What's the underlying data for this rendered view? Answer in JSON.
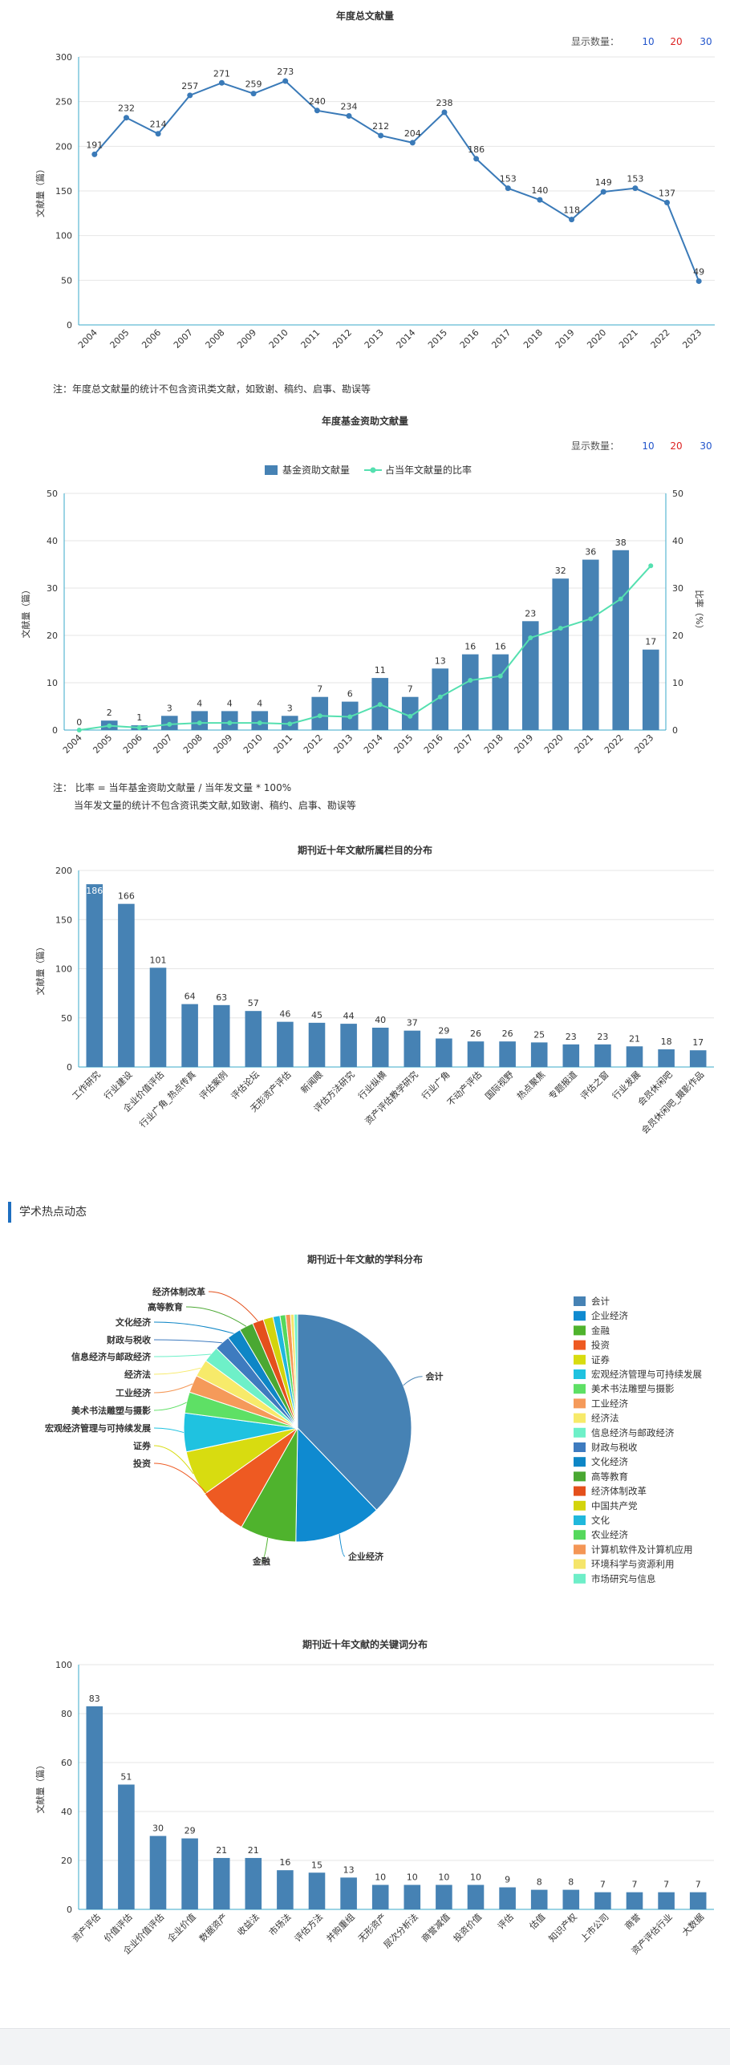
{
  "show_count": {
    "label": "显示数量：",
    "options": [
      "10",
      "20",
      "30"
    ]
  },
  "section": {
    "title": "学术热点动态"
  },
  "chart_data": [
    {
      "id": "annual",
      "type": "line",
      "title": "年度总文献量",
      "ylabel": "文献量（篇）",
      "ylim": [
        0,
        300
      ],
      "yticks": [
        0,
        50,
        100,
        150,
        200,
        250,
        300
      ],
      "x": [
        "2004",
        "2005",
        "2006",
        "2007",
        "2008",
        "2009",
        "2010",
        "2011",
        "2012",
        "2013",
        "2014",
        "2015",
        "2016",
        "2017",
        "2018",
        "2019",
        "2020",
        "2021",
        "2022",
        "2023"
      ],
      "values": [
        191,
        232,
        214,
        257,
        271,
        259,
        273,
        240,
        234,
        212,
        204,
        238,
        186,
        153,
        140,
        118,
        149,
        153,
        137,
        49
      ],
      "color": "#3a7ab8",
      "note": "注：年度总文献量的统计不包含资讯类文献，如致谢、稿约、启事、勘误等"
    },
    {
      "id": "fund",
      "type": "bar",
      "title": "年度基金资助文献量",
      "ylabel": "文献量（篇）",
      "y2label": "比率（%）",
      "ylim": [
        0,
        50
      ],
      "yticks": [
        0,
        10,
        20,
        30,
        40,
        50
      ],
      "x": [
        "2004",
        "2005",
        "2006",
        "2007",
        "2008",
        "2009",
        "2010",
        "2011",
        "2012",
        "2013",
        "2014",
        "2015",
        "2016",
        "2017",
        "2018",
        "2019",
        "2020",
        "2021",
        "2022",
        "2023"
      ],
      "series": [
        {
          "name": "基金资助文献量",
          "values": [
            0,
            2,
            1,
            3,
            4,
            4,
            4,
            3,
            7,
            6,
            11,
            7,
            13,
            16,
            16,
            23,
            32,
            36,
            38,
            17
          ],
          "color": "#4682b4"
        },
        {
          "name": "占当年文献量的比率",
          "values": [
            0,
            0.9,
            0.5,
            1.2,
            1.5,
            1.5,
            1.5,
            1.3,
            3.0,
            2.8,
            5.4,
            2.9,
            7.0,
            10.5,
            11.4,
            19.5,
            21.5,
            23.5,
            27.7,
            34.7
          ],
          "color": "#55e0b0"
        }
      ],
      "note_lines": [
        "注：  比率 = 当年基金资助文献量 / 当年发文量 * 100%",
        "当年发文量的统计不包含资讯类文献,如致谢、稿约、启事、勘误等"
      ]
    },
    {
      "id": "columns",
      "type": "bar",
      "title": "期刊近十年文献所属栏目的分布",
      "ylabel": "文献量（篇）",
      "ylim": [
        0,
        200
      ],
      "yticks": [
        0,
        50,
        100,
        150,
        200
      ],
      "categories": [
        "工作研究",
        "行业建设",
        "企业价值评估",
        "行业广角_热点传真",
        "评估案例",
        "评估论坛",
        "无形资产评估",
        "新闻眼",
        "评估方法研究",
        "行业纵横",
        "资产评估教学研究",
        "行业广角",
        "不动产评估",
        "国际视野",
        "热点聚焦",
        "专题报道",
        "评估之窗",
        "行业发展",
        "会员休闲吧",
        "会员休闲吧_摄影作品"
      ],
      "values": [
        186,
        166,
        101,
        64,
        63,
        57,
        46,
        45,
        44,
        40,
        37,
        29,
        26,
        26,
        25,
        23,
        23,
        21,
        18,
        17
      ],
      "labels": [
        "186",
        "166",
        "101",
        "64",
        "63",
        "57",
        "46",
        "45",
        "44",
        "40",
        "37",
        "29",
        "26",
        "26",
        "25",
        "23",
        "23",
        "21",
        "18",
        "17"
      ],
      "color": "#4682b4"
    },
    {
      "id": "subjects",
      "type": "pie",
      "title": "期刊近十年文献的学科分布",
      "slices": [
        {
          "name": "会计",
          "value": 38.0,
          "color": "#4682b4"
        },
        {
          "name": "企业经济",
          "value": 12.5,
          "color": "#0f8ad0"
        },
        {
          "name": "金融",
          "value": 8.0,
          "color": "#4fb32d"
        },
        {
          "name": "投资",
          "value": 7.0,
          "color": "#ee5a22"
        },
        {
          "name": "证券",
          "value": 6.5,
          "color": "#d8dc10"
        },
        {
          "name": "宏观经济管理与可持续发展",
          "value": 5.5,
          "color": "#1fc2e0"
        },
        {
          "name": "美术书法雕塑与摄影",
          "value": 3.0,
          "color": "#5ee065"
        },
        {
          "name": "工业经济",
          "value": 2.5,
          "color": "#f59a5a"
        },
        {
          "name": "经济法",
          "value": 2.5,
          "color": "#f7ea6a"
        },
        {
          "name": "信息经济与邮政经济",
          "value": 2.3,
          "color": "#6ef0c8"
        },
        {
          "name": "财政与税收",
          "value": 2.2,
          "color": "#3e7bbf"
        },
        {
          "name": "文化经济",
          "value": 2.0,
          "color": "#0e86c6"
        },
        {
          "name": "高等教育",
          "value": 2.0,
          "color": "#4aa832"
        },
        {
          "name": "经济体制改革",
          "value": 1.6,
          "color": "#e4501c"
        },
        {
          "name": "中国共产党",
          "value": 1.4,
          "color": "#d3d40c"
        },
        {
          "name": "文化",
          "value": 1.0,
          "color": "#20b8dc"
        },
        {
          "name": "农业经济",
          "value": 0.8,
          "color": "#55d85c"
        },
        {
          "name": "计算机软件及计算机应用",
          "value": 0.7,
          "color": "#f49656"
        },
        {
          "name": "环境科学与资源利用",
          "value": 0.5,
          "color": "#f5e56a"
        },
        {
          "name": "市场研究与信息",
          "value": 0.5,
          "color": "#6eeec8"
        }
      ]
    },
    {
      "id": "keywords",
      "type": "bar",
      "title": "期刊近十年文献的关键词分布",
      "ylabel": "文献量（篇）",
      "ylim": [
        0,
        100
      ],
      "yticks": [
        0,
        20,
        40,
        60,
        80,
        100
      ],
      "categories": [
        "资产评估",
        "价值评估",
        "企业价值评估",
        "企业价值",
        "数据资产",
        "收益法",
        "市场法",
        "评估方法",
        "并购重组",
        "无形资产",
        "层次分析法",
        "商誉减值",
        "投资价值",
        "评估",
        "估值",
        "知识产权",
        "上市公司",
        "商誉",
        "资产评估行业",
        "大数据"
      ],
      "values": [
        83,
        51,
        30,
        29,
        21,
        21,
        16,
        15,
        13,
        10,
        10,
        10,
        10,
        9,
        8,
        8,
        7,
        7,
        7,
        7
      ],
      "labels": [
        "83",
        "51",
        "30",
        "29",
        "21",
        "21",
        "16",
        "15",
        "13",
        "10",
        "10",
        "10",
        "10",
        "9",
        "8",
        "8",
        "7",
        "7",
        "7",
        "7"
      ],
      "color": "#4682b4"
    }
  ]
}
